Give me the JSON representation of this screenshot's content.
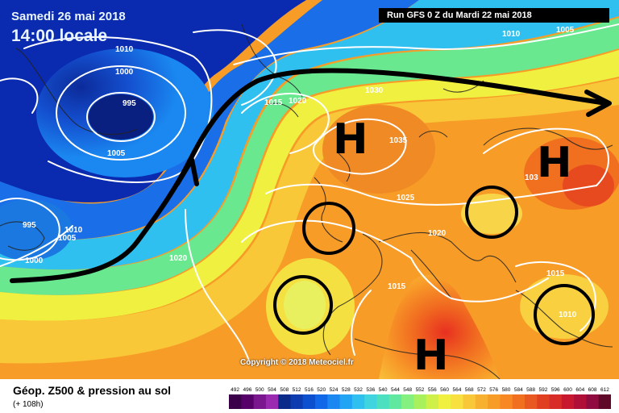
{
  "header": {
    "date": "Samedi 26 mai 2018",
    "time": "14:00 locale",
    "run": "Run GFS 0 Z du Mardi 22 mai 2018"
  },
  "copyright": "Copyright © 2018 Meteociel.fr",
  "footer": {
    "title": "Géop. Z500 & pression au sol",
    "subtitle": "(+ 108h)"
  },
  "scale_labels": [
    "492",
    "496",
    "500",
    "504",
    "508",
    "512",
    "516",
    "520",
    "524",
    "528",
    "532",
    "536",
    "540",
    "544",
    "548",
    "552",
    "556",
    "560",
    "564",
    "568",
    "572",
    "576",
    "580",
    "584",
    "588",
    "592",
    "596",
    "600",
    "604",
    "608",
    "612"
  ],
  "scale_colors": [
    "#3a004a",
    "#56006a",
    "#7a168e",
    "#9a2ab0",
    "#0a2a8a",
    "#0c3cb0",
    "#0c50d0",
    "#1068e8",
    "#1a88f0",
    "#22a4f4",
    "#30c0f0",
    "#40d4e0",
    "#4ce0c0",
    "#60e8a0",
    "#84f080",
    "#a8f05c",
    "#cef048",
    "#f0f040",
    "#f8e040",
    "#f8c838",
    "#f8b030",
    "#f89c28",
    "#f88824",
    "#f07020",
    "#e85820",
    "#e04020",
    "#d82c28",
    "#c81830",
    "#b01038",
    "#900c40",
    "#600828"
  ],
  "isobar_labels": [
    {
      "text": "1010",
      "kind": "low"
    },
    {
      "text": "1000",
      "kind": "low"
    },
    {
      "text": "995",
      "kind": "low"
    },
    {
      "text": "1005",
      "kind": "low"
    },
    {
      "text": "1015",
      "kind": "mid"
    },
    {
      "text": "1020",
      "kind": "mid"
    },
    {
      "text": "1030",
      "kind": "mid"
    },
    {
      "text": "1035",
      "kind": "mid"
    },
    {
      "text": "1025",
      "kind": "mid"
    },
    {
      "text": "1020",
      "kind": "mid"
    },
    {
      "text": "1020",
      "kind": "mid"
    },
    {
      "text": "1010",
      "kind": "mid"
    },
    {
      "text": "1005",
      "kind": "mid"
    },
    {
      "text": "995",
      "kind": "low"
    },
    {
      "text": "1000",
      "kind": "low"
    },
    {
      "text": "1015",
      "kind": "mid"
    },
    {
      "text": "1015",
      "kind": "mid"
    },
    {
      "text": "1010",
      "kind": "mid"
    },
    {
      "text": "1010",
      "kind": "mid"
    },
    {
      "text": "1005",
      "kind": "mid"
    },
    {
      "text": "103",
      "kind": "mid"
    }
  ],
  "pressure_centers": [
    "H",
    "H",
    "H"
  ]
}
